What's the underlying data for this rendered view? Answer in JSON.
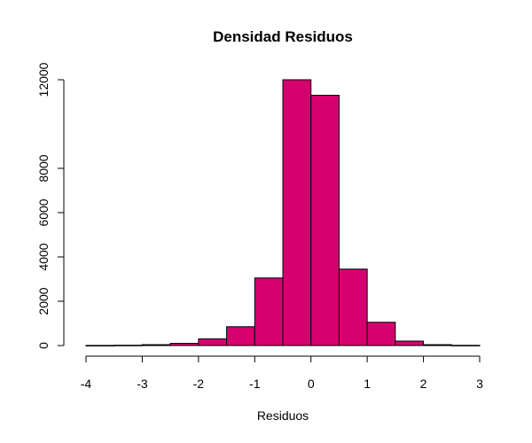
{
  "chart_data": {
    "type": "histogram",
    "title": "Densidad Residuos",
    "xlabel": "Residuos",
    "ylabel": "",
    "bin_edges": [
      -4,
      -3.5,
      -3,
      -2.5,
      -2,
      -1.5,
      -1,
      -0.5,
      0,
      0.5,
      1,
      1.5,
      2,
      2.5,
      3
    ],
    "counts": [
      5,
      15,
      40,
      100,
      300,
      850,
      3050,
      12000,
      11300,
      3450,
      1050,
      200,
      40,
      10
    ],
    "xticks": [
      -4,
      -3,
      -2,
      -1,
      0,
      1,
      2,
      3
    ],
    "yticks": [
      0,
      2000,
      4000,
      6000,
      8000,
      12000
    ],
    "xlim": [
      -4,
      3
    ],
    "ylim": [
      0,
      12000
    ],
    "bar_color": "#D6006F",
    "bar_edge_color": "#000000",
    "grid": false
  }
}
